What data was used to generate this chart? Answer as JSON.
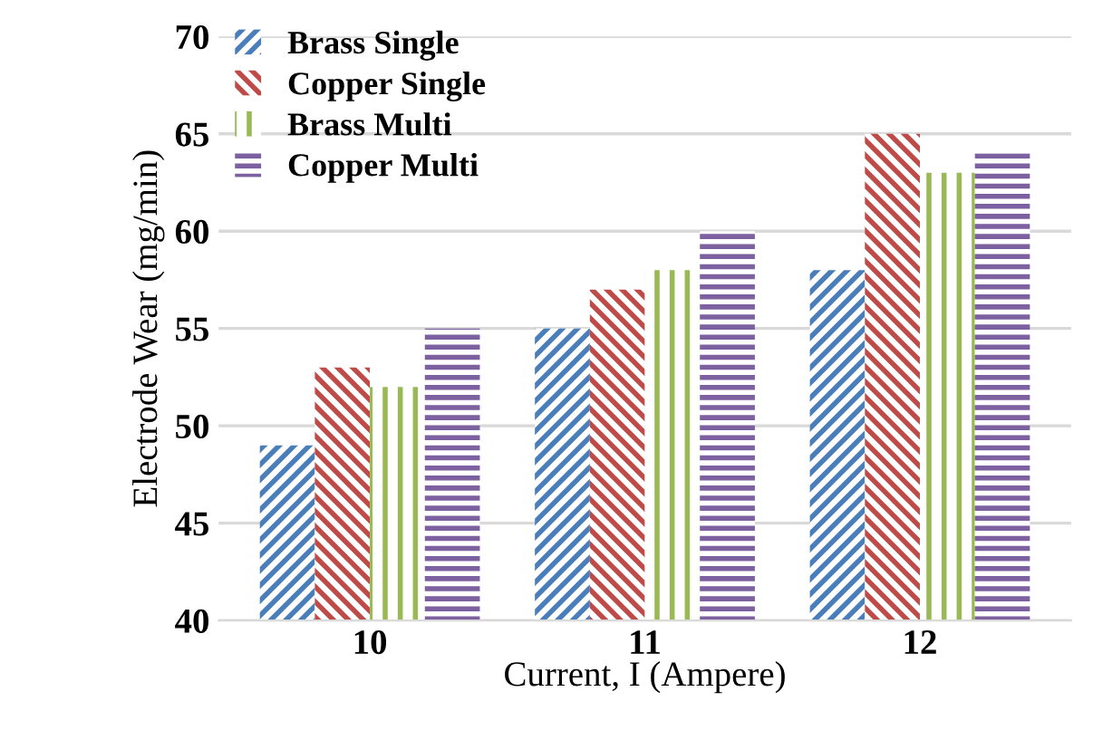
{
  "chart_data": {
    "type": "bar",
    "xlabel": "Current, I (Ampere)",
    "ylabel": "Electrode Wear (mg/min)",
    "categories": [
      "10",
      "11",
      "12"
    ],
    "series": [
      {
        "name": "Brass Single",
        "color": "#4a7ebb",
        "values": [
          49,
          55,
          58
        ]
      },
      {
        "name": "Copper Single",
        "color": "#be4b48",
        "values": [
          53,
          57,
          65
        ]
      },
      {
        "name": "Brass Multi",
        "color": "#98b954",
        "values": [
          52,
          58,
          63
        ]
      },
      {
        "name": "Copper Multi",
        "color": "#7d60a0",
        "values": [
          55,
          60,
          64
        ]
      }
    ],
    "ylim": [
      40,
      70
    ],
    "yticks": [
      40,
      45,
      50,
      55,
      60,
      65,
      70
    ],
    "grid": "y",
    "legend": "top left"
  }
}
